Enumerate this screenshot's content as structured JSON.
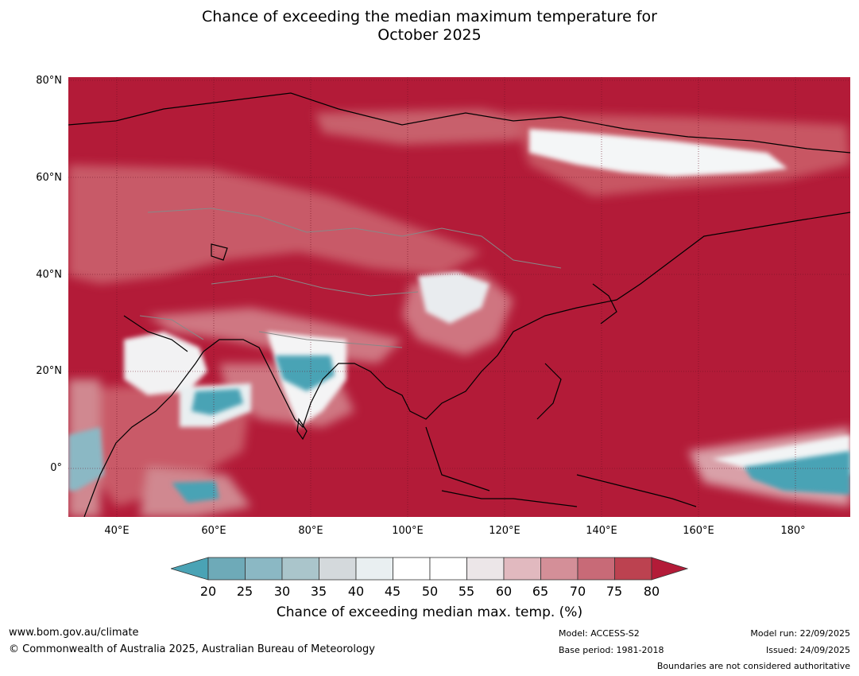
{
  "title_line1": "Chance of exceeding the median maximum temperature for",
  "title_line2": "October 2025",
  "map": {
    "lat_labels": [
      "80°N",
      "60°N",
      "40°N",
      "20°N",
      "0°"
    ],
    "lon_labels": [
      "40°E",
      "60°E",
      "80°E",
      "100°E",
      "120°E",
      "140°E",
      "160°E",
      "180°"
    ],
    "lat_range": [
      -10,
      80
    ],
    "lon_range": [
      30,
      191
    ],
    "background_color": "#b31b38",
    "regions": [
      {
        "name": "arabia-low-chance",
        "color": "#ffffff"
      },
      {
        "name": "india-low-chance",
        "color": "#4aa3b5"
      },
      {
        "name": "siberia-near-median",
        "color": "#ffffff"
      },
      {
        "name": "pacific-low-chance",
        "color": "#4aa3b5"
      },
      {
        "name": "china-near-median",
        "color": "#e8e8ea"
      }
    ]
  },
  "colorbar": {
    "ticks": [
      "20",
      "25",
      "30",
      "35",
      "40",
      "45",
      "50",
      "55",
      "60",
      "65",
      "70",
      "75",
      "80"
    ],
    "colors": [
      "#4aa3b5",
      "#6eaab8",
      "#8bb8c4",
      "#aac5cb",
      "#d4d9dc",
      "#e9eff1",
      "#ffffff",
      "#ffffff",
      "#ece6e8",
      "#e1b9bf",
      "#d48f98",
      "#c86a77",
      "#bc4250",
      "#b31b38"
    ],
    "title": "Chance of exceeding median max. temp. (%)"
  },
  "footer": {
    "website": "www.bom.gov.au/climate",
    "copyright": "© Commonwealth of Australia 2025, Australian Bureau of Meteorology",
    "model": "Model: ACCESS-S2",
    "base_period": "Base period: 1981-2018",
    "model_run": "Model run: 22/09/2025",
    "issued": "Issued: 24/09/2025",
    "boundaries": "Boundaries are not considered authoritative"
  }
}
